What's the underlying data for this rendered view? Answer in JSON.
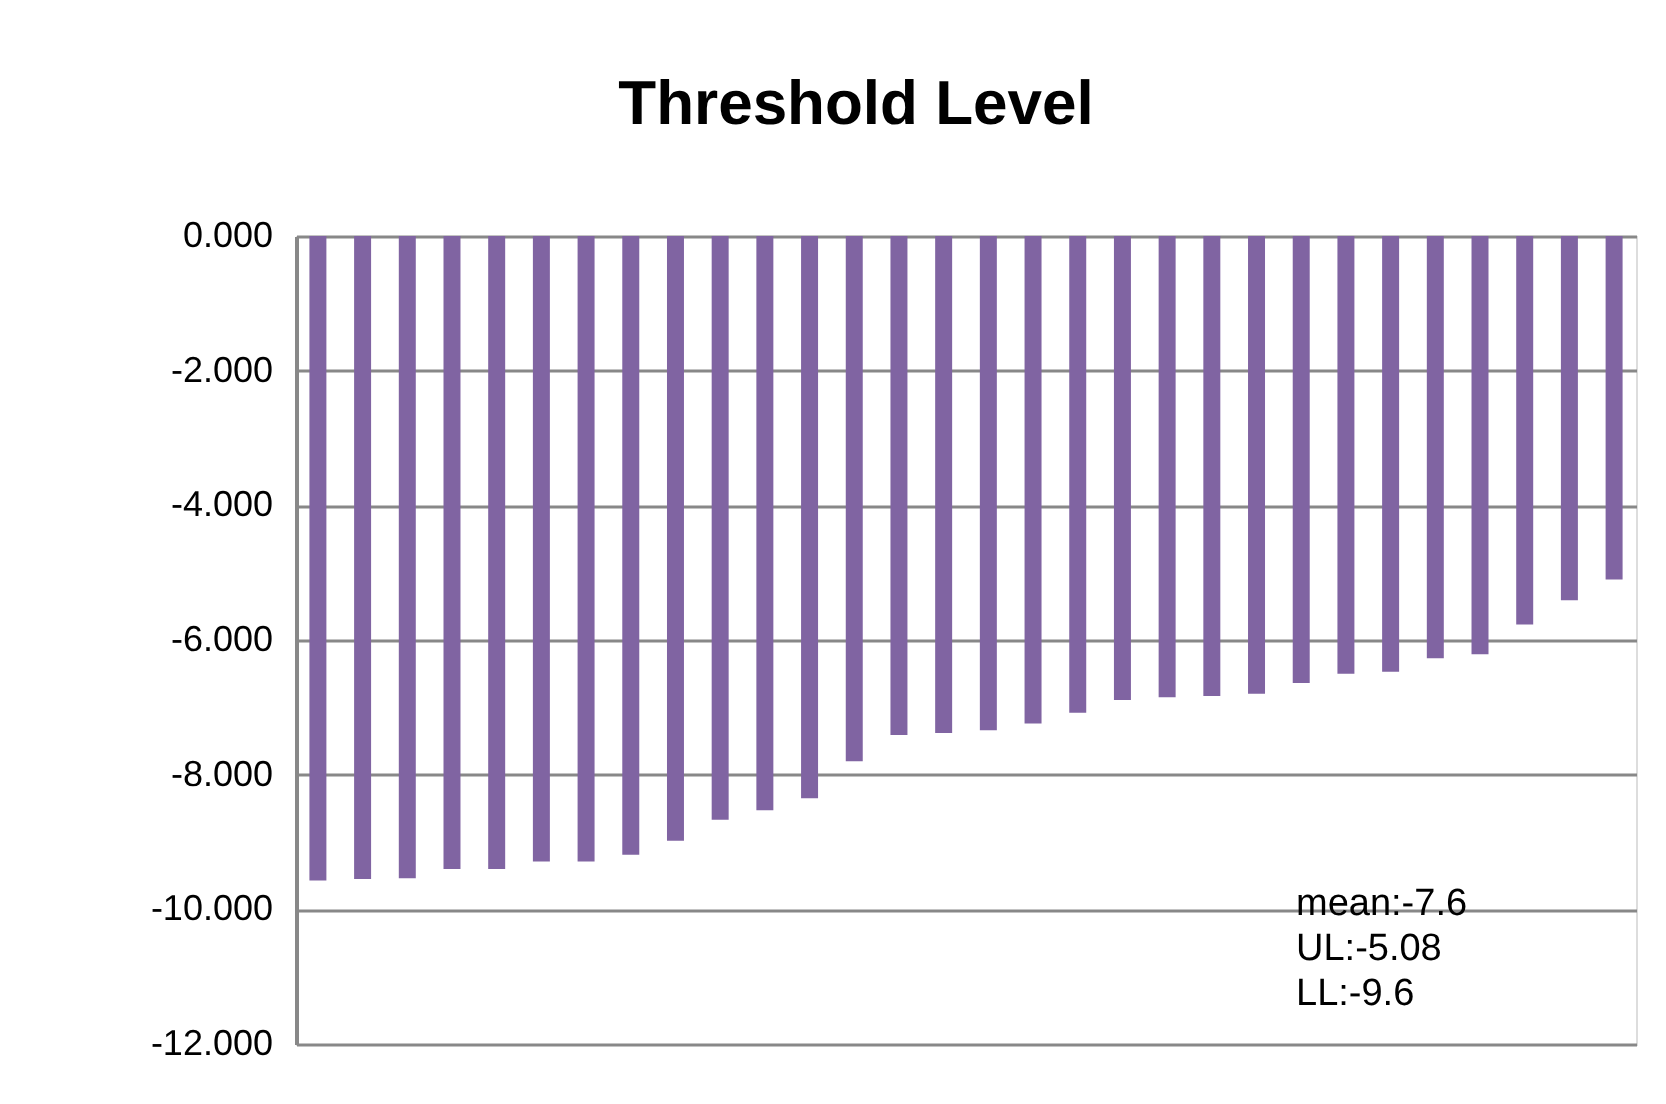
{
  "chart_data": {
    "type": "bar",
    "title": "Threshold Level",
    "categories": [
      null,
      null,
      null,
      null,
      null,
      null,
      null,
      null,
      null,
      null,
      null,
      null,
      null,
      null,
      null,
      null,
      null,
      null,
      null,
      null,
      null,
      null,
      null,
      null,
      null,
      null,
      null,
      null,
      null,
      null
    ],
    "series": [
      {
        "color": "#8064a2",
        "values": [
          -9.57,
          -9.55,
          -9.54,
          -9.4,
          -9.4,
          -9.29,
          -9.29,
          -9.19,
          -8.98,
          -8.67,
          -8.53,
          -8.35,
          -7.8,
          -7.41,
          -7.38,
          -7.34,
          -7.24,
          -7.08,
          -6.89,
          -6.85,
          -6.83,
          -6.8,
          -6.64,
          -6.5,
          -6.47,
          -6.27,
          -6.21,
          -5.77,
          -5.41,
          -5.1
        ]
      }
    ],
    "ylim": [
      -12,
      0
    ],
    "yticks": [
      {
        "value": -12,
        "label": "-12.000"
      },
      {
        "value": -10,
        "label": "-10.000"
      },
      {
        "value": -8,
        "label": "-8.000"
      },
      {
        "value": -6,
        "label": "-6.000"
      },
      {
        "value": -4,
        "label": "-4.000"
      },
      {
        "value": -2,
        "label": "-2.000"
      },
      {
        "value": 0,
        "label": "0.000"
      }
    ],
    "grid": "y",
    "tick_labels": "y",
    "annotations": [
      "mean:-7.6",
      "UL:-5.08",
      "LL:-9.6"
    ]
  }
}
